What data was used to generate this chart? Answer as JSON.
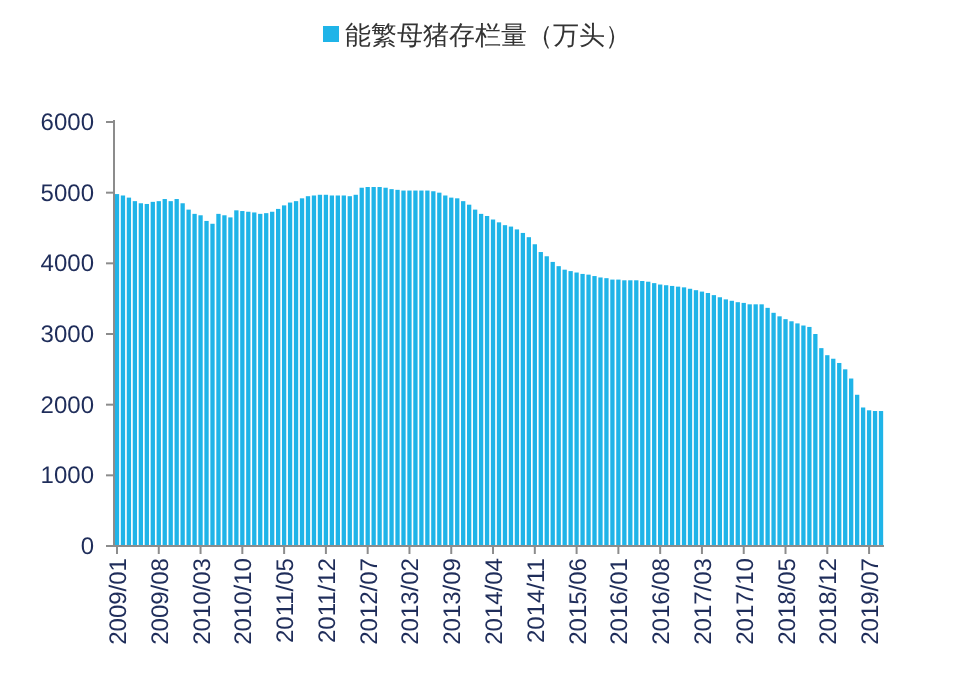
{
  "chart_data": {
    "type": "bar",
    "legend": "top",
    "categories": [
      "2009/01",
      null,
      null,
      null,
      null,
      null,
      null,
      "2009/08",
      null,
      null,
      null,
      null,
      null,
      null,
      "2010/03",
      null,
      null,
      null,
      null,
      null,
      null,
      "2010/10",
      null,
      null,
      null,
      null,
      null,
      null,
      "2011/05",
      null,
      null,
      null,
      null,
      null,
      null,
      "2011/12",
      null,
      null,
      null,
      null,
      null,
      null,
      "2012/07",
      null,
      null,
      null,
      null,
      null,
      null,
      "2013/02",
      null,
      null,
      null,
      null,
      null,
      null,
      "2013/09",
      null,
      null,
      null,
      null,
      null,
      null,
      "2014/04",
      null,
      null,
      null,
      null,
      null,
      null,
      "2014/11",
      null,
      null,
      null,
      null,
      null,
      null,
      "2015/06",
      null,
      null,
      null,
      null,
      null,
      null,
      "2016/01",
      null,
      null,
      null,
      null,
      null,
      null,
      "2016/08",
      null,
      null,
      null,
      null,
      null,
      null,
      "2017/03",
      null,
      null,
      null,
      null,
      null,
      null,
      "2017/10",
      null,
      null,
      null,
      null,
      null,
      null,
      "2018/05",
      null,
      null,
      null,
      null,
      null,
      null,
      "2018/12",
      null,
      null,
      null,
      null,
      null,
      null,
      "2019/07",
      null,
      null
    ],
    "series": [
      {
        "name": "能繁母猪存栏量（万头）",
        "color": "#1fb4e8",
        "values": [
          4980,
          4960,
          4930,
          4880,
          4850,
          4840,
          4870,
          4880,
          4910,
          4880,
          4910,
          4850,
          4760,
          4700,
          4680,
          4600,
          4560,
          4700,
          4680,
          4650,
          4750,
          4740,
          4730,
          4720,
          4700,
          4710,
          4730,
          4770,
          4820,
          4860,
          4880,
          4920,
          4950,
          4960,
          4970,
          4970,
          4960,
          4960,
          4960,
          4950,
          4970,
          5070,
          5080,
          5080,
          5080,
          5070,
          5050,
          5040,
          5030,
          5030,
          5030,
          5030,
          5030,
          5020,
          5000,
          4960,
          4930,
          4920,
          4880,
          4830,
          4760,
          4700,
          4670,
          4620,
          4580,
          4540,
          4520,
          4480,
          4430,
          4370,
          4270,
          4160,
          4100,
          4020,
          3960,
          3910,
          3890,
          3870,
          3850,
          3840,
          3820,
          3800,
          3790,
          3770,
          3770,
          3760,
          3760,
          3760,
          3750,
          3740,
          3720,
          3700,
          3690,
          3680,
          3670,
          3660,
          3640,
          3620,
          3600,
          3580,
          3550,
          3520,
          3490,
          3470,
          3450,
          3440,
          3420,
          3420,
          3420,
          3370,
          3300,
          3250,
          3210,
          3180,
          3150,
          3120,
          3100,
          3000,
          2800,
          2700,
          2650,
          2590,
          2500,
          2370,
          2140,
          1960,
          1920,
          1910,
          1910
        ]
      }
    ],
    "ylim": [
      0,
      6000
    ],
    "yticks": [
      0,
      1000,
      2000,
      3000,
      4000,
      5000,
      6000
    ]
  }
}
